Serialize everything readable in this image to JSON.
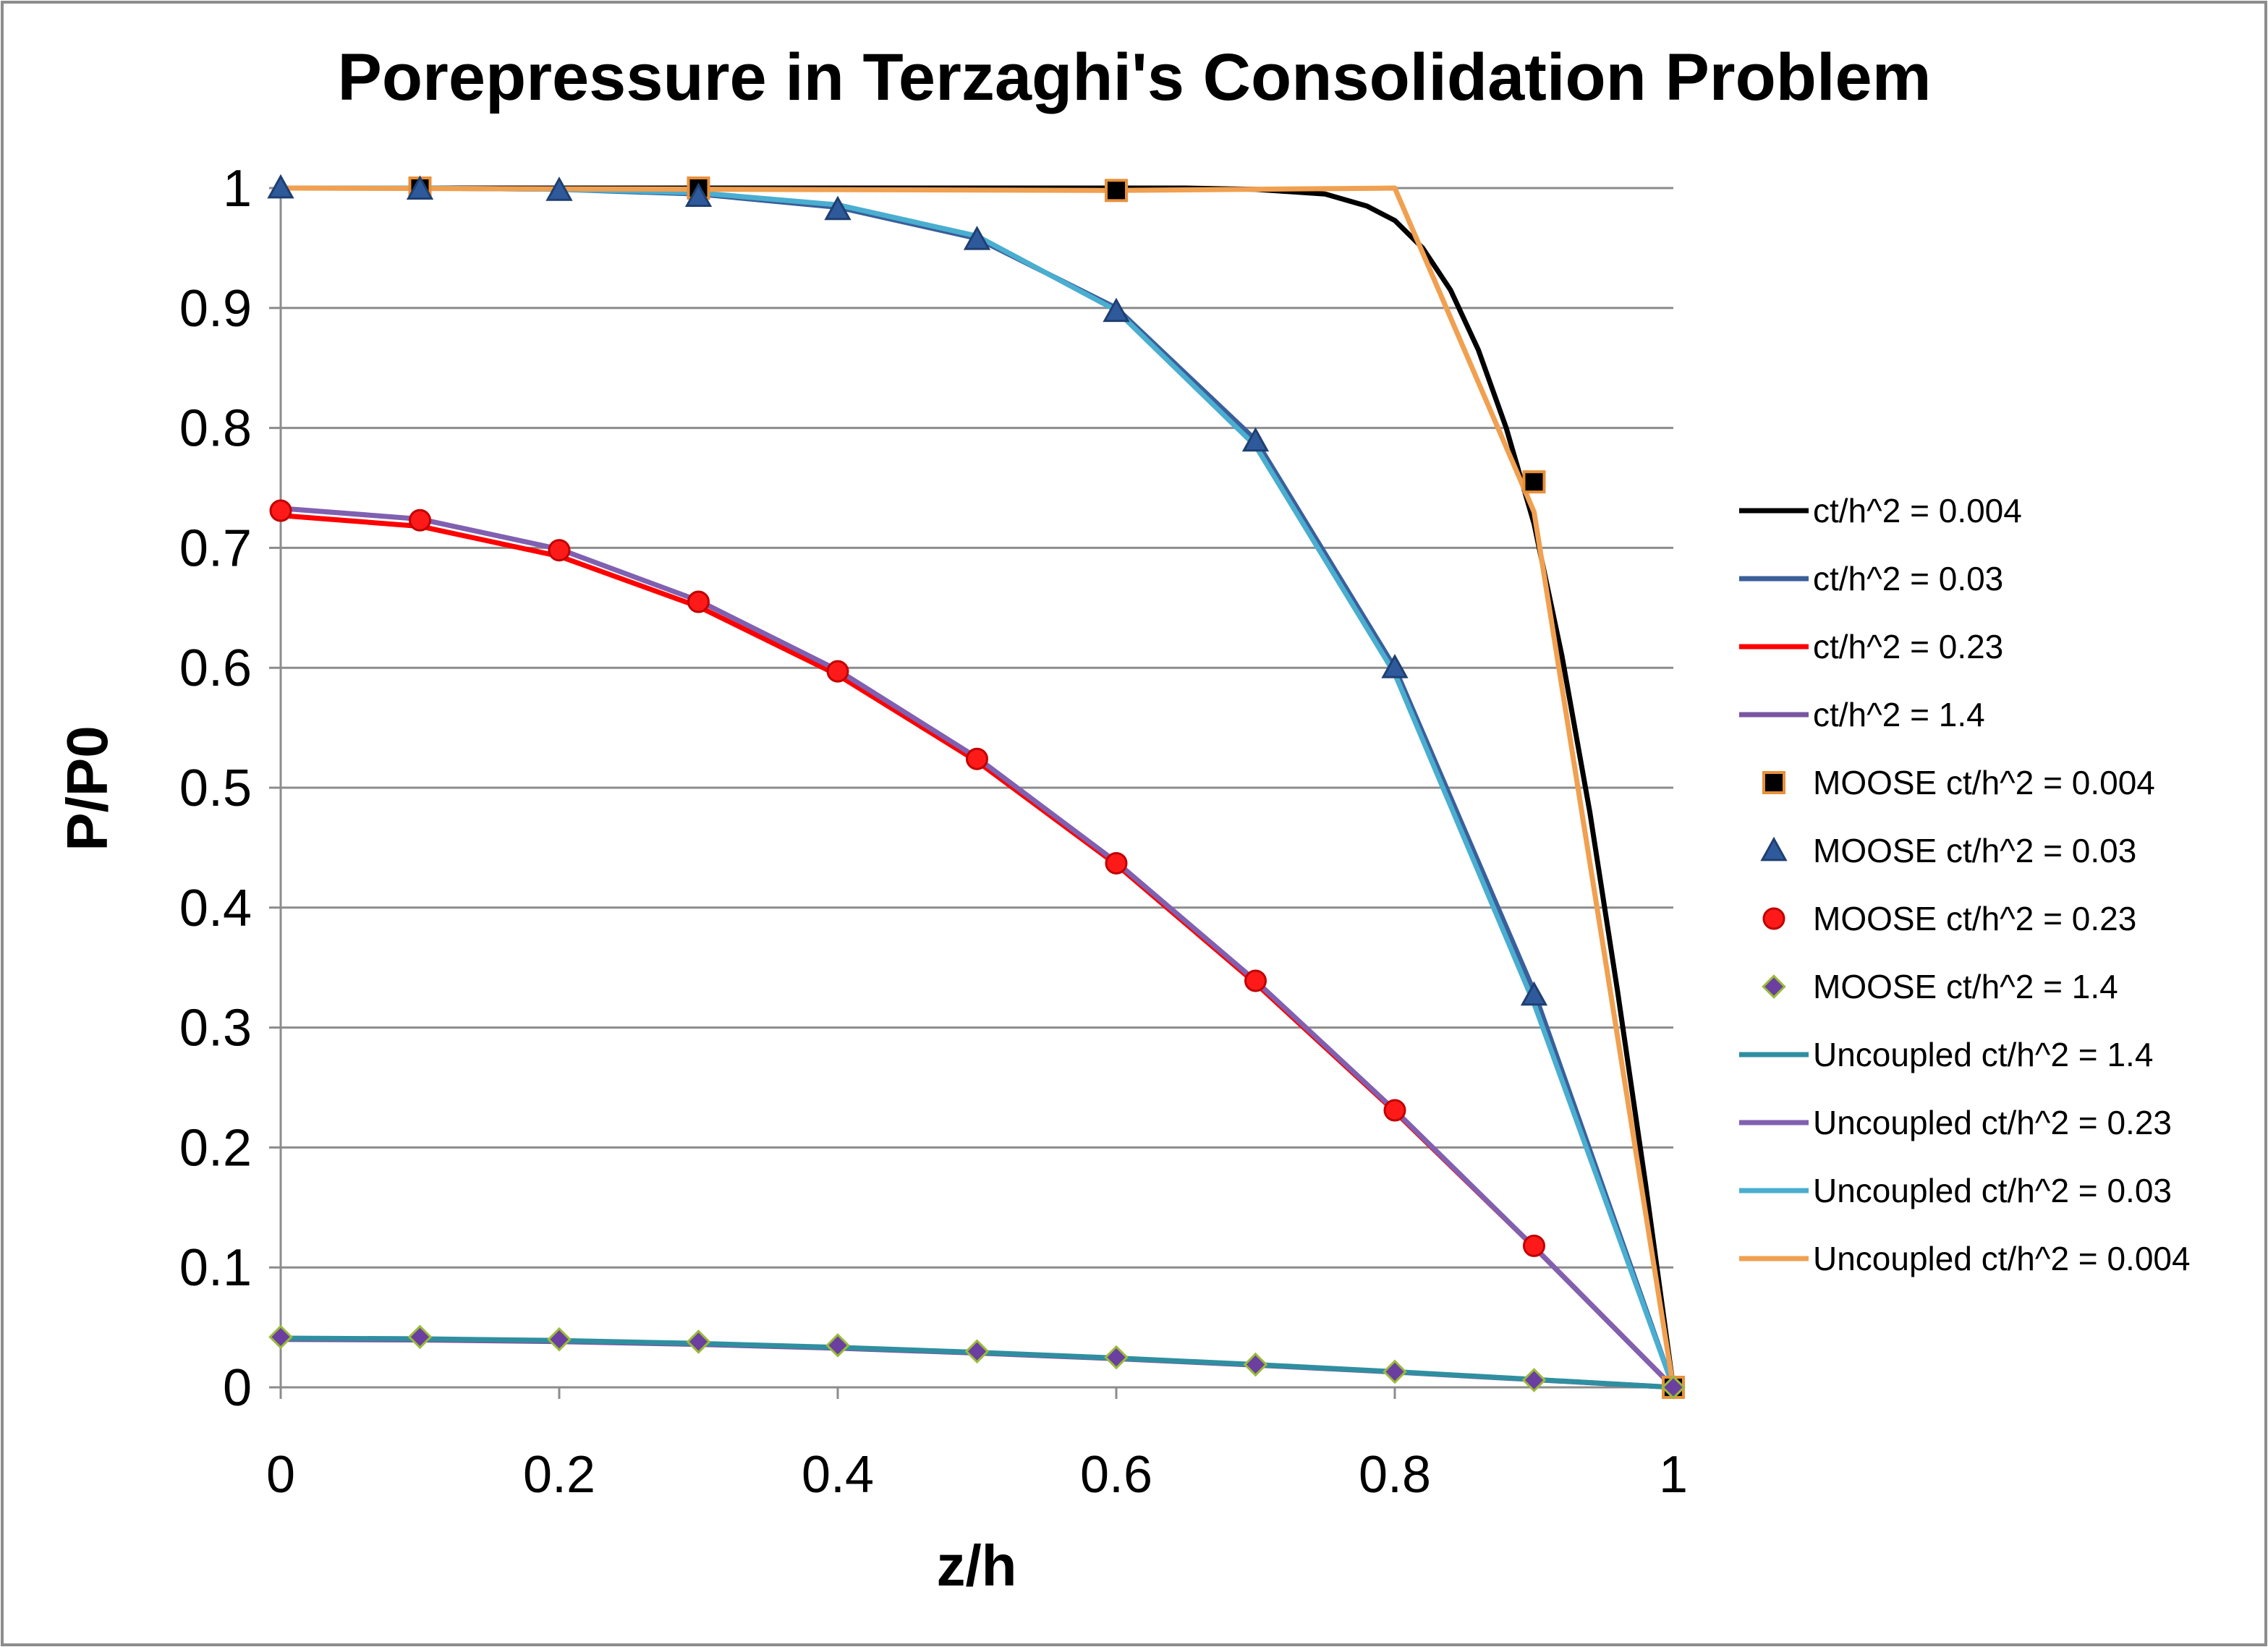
{
  "chart_data": {
    "type": "line",
    "title": "Porepressure in Terzaghi's Consolidation Problem",
    "xlabel": "z/h",
    "ylabel": "P/P0",
    "xlim": [
      0,
      1
    ],
    "ylim": [
      0,
      1
    ],
    "xticks": [
      "0",
      "0.2",
      "0.4",
      "0.6",
      "0.8",
      "1"
    ],
    "yticks": [
      "0",
      "0.1",
      "0.2",
      "0.3",
      "0.4",
      "0.5",
      "0.6",
      "0.7",
      "0.8",
      "0.9",
      "1"
    ],
    "grid": "horizontal",
    "legend_position": "right",
    "series": [
      {
        "name": "ct/h^2 = 0.004",
        "kind": "line",
        "color": "#000000",
        "x": [
          0,
          0.1,
          0.2,
          0.3,
          0.4,
          0.5,
          0.6,
          0.65,
          0.7,
          0.75,
          0.78,
          0.8,
          0.82,
          0.84,
          0.86,
          0.88,
          0.9,
          0.92,
          0.94,
          0.96,
          0.98,
          1.0
        ],
        "y": [
          1.0,
          1.0,
          1.0,
          1.0,
          1.0,
          1.0,
          1.0,
          1.0,
          0.999,
          0.995,
          0.985,
          0.973,
          0.95,
          0.915,
          0.865,
          0.8,
          0.72,
          0.61,
          0.48,
          0.33,
          0.17,
          0.0
        ]
      },
      {
        "name": "ct/h^2 = 0.03",
        "kind": "line",
        "color": "#3a5f9a",
        "x": [
          0,
          0.1,
          0.2,
          0.3,
          0.4,
          0.5,
          0.6,
          0.7,
          0.8,
          0.9,
          1.0
        ],
        "y": [
          1.0,
          1.0,
          0.999,
          0.995,
          0.984,
          0.958,
          0.9,
          0.79,
          0.6,
          0.33,
          0.0
        ]
      },
      {
        "name": "ct/h^2 = 0.23",
        "kind": "line",
        "color": "#ff0000",
        "x": [
          0,
          0.1,
          0.2,
          0.3,
          0.4,
          0.5,
          0.6,
          0.7,
          0.8,
          0.9,
          1.0
        ],
        "y": [
          0.727,
          0.718,
          0.693,
          0.651,
          0.594,
          0.522,
          0.436,
          0.337,
          0.23,
          0.117,
          0.0
        ]
      },
      {
        "name": "ct/h^2 = 1.4",
        "kind": "line",
        "color": "#7a55a0",
        "x": [
          0,
          0.1,
          0.2,
          0.3,
          0.4,
          0.5,
          0.6,
          0.7,
          0.8,
          0.9,
          1.0
        ],
        "y": [
          0.04,
          0.0395,
          0.0381,
          0.0358,
          0.0326,
          0.0286,
          0.0239,
          0.0186,
          0.0127,
          0.0064,
          0.0
        ]
      },
      {
        "name": "MOOSE ct/h^2 = 0.004",
        "kind": "marker",
        "marker": "square",
        "color": "#000000",
        "edge": "#e8903a",
        "x": [
          0.1,
          0.3,
          0.6,
          0.9,
          1.0
        ],
        "y": [
          1.0,
          1.0,
          0.998,
          0.755,
          0.0
        ]
      },
      {
        "name": "MOOSE ct/h^2 = 0.03",
        "kind": "marker",
        "marker": "triangle",
        "color": "#2e5a9c",
        "edge": "#1f3f70",
        "x": [
          0,
          0.1,
          0.2,
          0.3,
          0.4,
          0.5,
          0.6,
          0.7,
          0.8,
          0.9
        ],
        "y": [
          1.0,
          0.999,
          0.998,
          0.993,
          0.982,
          0.957,
          0.897,
          0.789,
          0.6,
          0.327
        ]
      },
      {
        "name": "MOOSE ct/h^2 = 0.23",
        "kind": "marker",
        "marker": "circle",
        "color": "#ff1a1a",
        "edge": "#c00000",
        "x": [
          0,
          0.1,
          0.2,
          0.3,
          0.4,
          0.5,
          0.6,
          0.7,
          0.8,
          0.9
        ],
        "y": [
          0.731,
          0.723,
          0.698,
          0.655,
          0.597,
          0.524,
          0.437,
          0.339,
          0.231,
          0.118
        ]
      },
      {
        "name": "MOOSE ct/h^2 = 1.4",
        "kind": "marker",
        "marker": "diamond",
        "color": "#6a3fa0",
        "edge": "#9bbb3a",
        "x": [
          0,
          0.1,
          0.2,
          0.3,
          0.4,
          0.5,
          0.6,
          0.7,
          0.8,
          0.9,
          1.0
        ],
        "y": [
          0.042,
          0.042,
          0.04,
          0.038,
          0.035,
          0.03,
          0.025,
          0.019,
          0.013,
          0.006,
          0.0
        ]
      },
      {
        "name": "Uncoupled ct/h^2 = 1.4",
        "kind": "line",
        "color": "#2f8fa0",
        "x": [
          0,
          0.1,
          0.2,
          0.3,
          0.4,
          0.5,
          0.6,
          0.7,
          0.8,
          0.9,
          1.0
        ],
        "y": [
          0.041,
          0.0405,
          0.039,
          0.0366,
          0.0333,
          0.0292,
          0.0244,
          0.019,
          0.013,
          0.0066,
          0.0
        ]
      },
      {
        "name": "Uncoupled ct/h^2 = 0.23",
        "kind": "line",
        "color": "#8060b0",
        "x": [
          0,
          0.1,
          0.2,
          0.3,
          0.4,
          0.5,
          0.6,
          0.7,
          0.8,
          0.9,
          1.0
        ],
        "y": [
          0.733,
          0.724,
          0.699,
          0.656,
          0.598,
          0.525,
          0.438,
          0.339,
          0.231,
          0.117,
          0.0
        ]
      },
      {
        "name": "Uncoupled ct/h^2 = 0.03",
        "kind": "line",
        "color": "#4aaed0",
        "x": [
          0,
          0.1,
          0.2,
          0.3,
          0.4,
          0.5,
          0.6,
          0.7,
          0.8,
          0.9,
          1.0
        ],
        "y": [
          1.0,
          1.0,
          0.999,
          0.996,
          0.986,
          0.96,
          0.898,
          0.785,
          0.595,
          0.32,
          0.0
        ]
      },
      {
        "name": "Uncoupled ct/h^2 = 0.004",
        "kind": "line",
        "color": "#f0a050",
        "x": [
          0,
          0.6,
          0.8,
          0.9,
          1.0
        ],
        "y": [
          1.0,
          0.998,
          1.0,
          0.73,
          0.0
        ]
      }
    ]
  }
}
